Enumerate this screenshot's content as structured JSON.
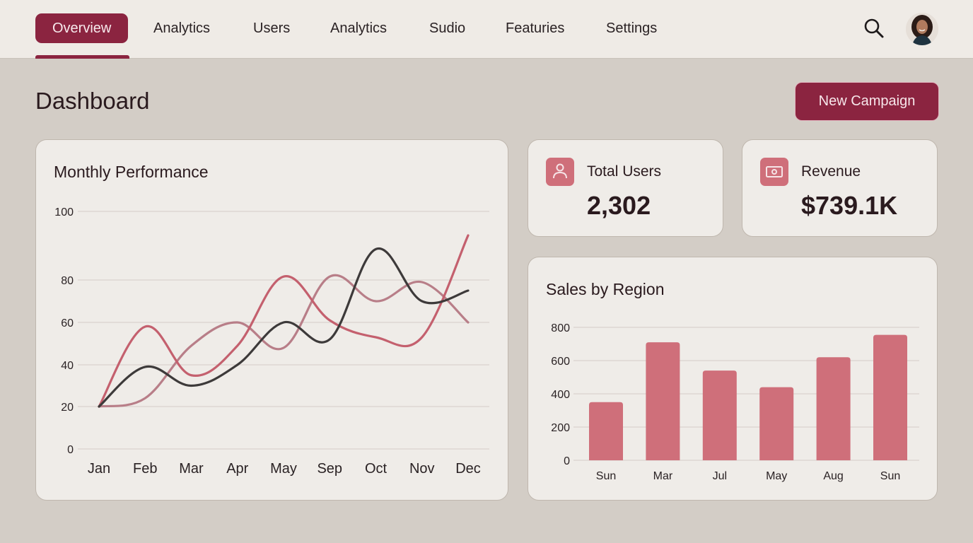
{
  "nav": {
    "tabs": [
      {
        "label": "Overview",
        "active": true
      },
      {
        "label": "Analytics",
        "active": false
      },
      {
        "label": "Users",
        "active": false
      },
      {
        "label": "Analytics",
        "active": false
      },
      {
        "label": "Sudio",
        "active": false
      },
      {
        "label": "Featuries",
        "active": false
      },
      {
        "label": "Settings",
        "active": false
      }
    ],
    "search_icon": "search-icon",
    "avatar_icon": "user-avatar"
  },
  "header": {
    "title": "Dashboard",
    "new_campaign_label": "New Campaign"
  },
  "stats": {
    "total_users": {
      "label": "Total Users",
      "value": "2,302",
      "icon": "user-icon"
    },
    "revenue": {
      "label": "Revenue",
      "value": "$739.1K",
      "icon": "banknote-icon"
    }
  },
  "colors": {
    "accent": "#8b2440",
    "bar": "#cf6f7a",
    "series_dark": "#3d3a3a",
    "series_red": "#c4606e",
    "series_pink": "#b87e88",
    "background": "#d3cdc6",
    "card": "#efece8"
  },
  "chart_data": [
    {
      "type": "line",
      "title": "Monthly Performance",
      "categories": [
        "Jan",
        "Feb",
        "Mar",
        "Apr",
        "May",
        "Sep",
        "Oct",
        "Nov",
        "Dec"
      ],
      "yticks": [
        0,
        20,
        40,
        60,
        80,
        100
      ],
      "ylim": [
        0,
        100
      ],
      "grid": true,
      "legend": "none",
      "series": [
        {
          "name": "Series 1 (dark)",
          "values": [
            20,
            39,
            30,
            40,
            60,
            52,
            89,
            70,
            75
          ]
        },
        {
          "name": "Series 2 (red)",
          "values": [
            20,
            58,
            35,
            49,
            81,
            61,
            53,
            53,
            93
          ]
        },
        {
          "name": "Series 3 (pink)",
          "values": [
            20,
            24,
            49,
            60,
            48,
            81,
            70,
            79,
            60
          ]
        }
      ]
    },
    {
      "type": "bar",
      "title": "Sales by Region",
      "categories": [
        "Sun",
        "Mar",
        "Jul",
        "May",
        "Aug",
        "Sun"
      ],
      "values": [
        350,
        710,
        540,
        440,
        620,
        755
      ],
      "yticks": [
        0,
        200,
        400,
        600,
        800
      ],
      "ylim": [
        0,
        800
      ],
      "grid": true,
      "legend": "none"
    }
  ]
}
